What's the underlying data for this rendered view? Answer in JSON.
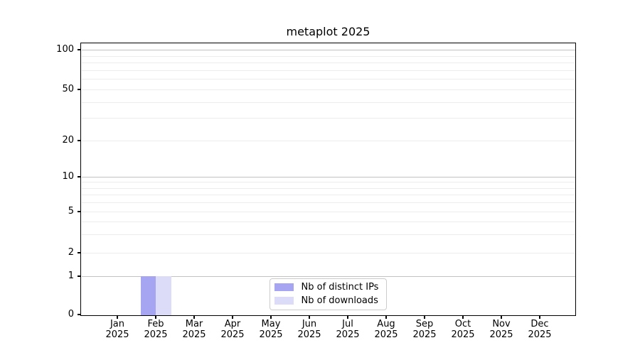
{
  "chart_data": {
    "type": "bar",
    "title": "metaplot 2025",
    "categories": [
      "Jan",
      "Feb",
      "Mar",
      "Apr",
      "May",
      "Jun",
      "Jul",
      "Aug",
      "Sep",
      "Oct",
      "Nov",
      "Dec"
    ],
    "year": "2025",
    "series": [
      {
        "name": "Nb of distinct IPs",
        "color": "#a5a5f1",
        "values": [
          0,
          1,
          0,
          0,
          0,
          0,
          0,
          0,
          0,
          0,
          0,
          0
        ]
      },
      {
        "name": "Nb of downloads",
        "color": "#dcdcf8",
        "values": [
          0,
          1,
          0,
          0,
          0,
          0,
          0,
          0,
          0,
          0,
          0,
          0
        ]
      }
    ],
    "y_axis": {
      "scale": "log above 1, linear 0-1",
      "major_ticks": [
        0,
        1,
        2,
        5,
        10,
        20,
        50,
        100
      ],
      "decade_gridlines": [
        1,
        10,
        100
      ],
      "minor_gridlines": [
        3,
        4,
        6,
        7,
        8,
        9,
        30,
        40,
        60,
        70,
        80,
        90
      ],
      "range": [
        0,
        115
      ]
    },
    "x_axis": {
      "tick_label_line2": "2025"
    },
    "legend": {
      "location": "lower center",
      "entries": [
        "Nb of distinct IPs",
        "Nb of downloads"
      ]
    },
    "grid": "horizontal major and minor",
    "colors": {
      "grid_major": "#c2c2c2",
      "grid_minor": "#ececec",
      "spine": "#000000",
      "legend_border": "#cccccc"
    }
  }
}
